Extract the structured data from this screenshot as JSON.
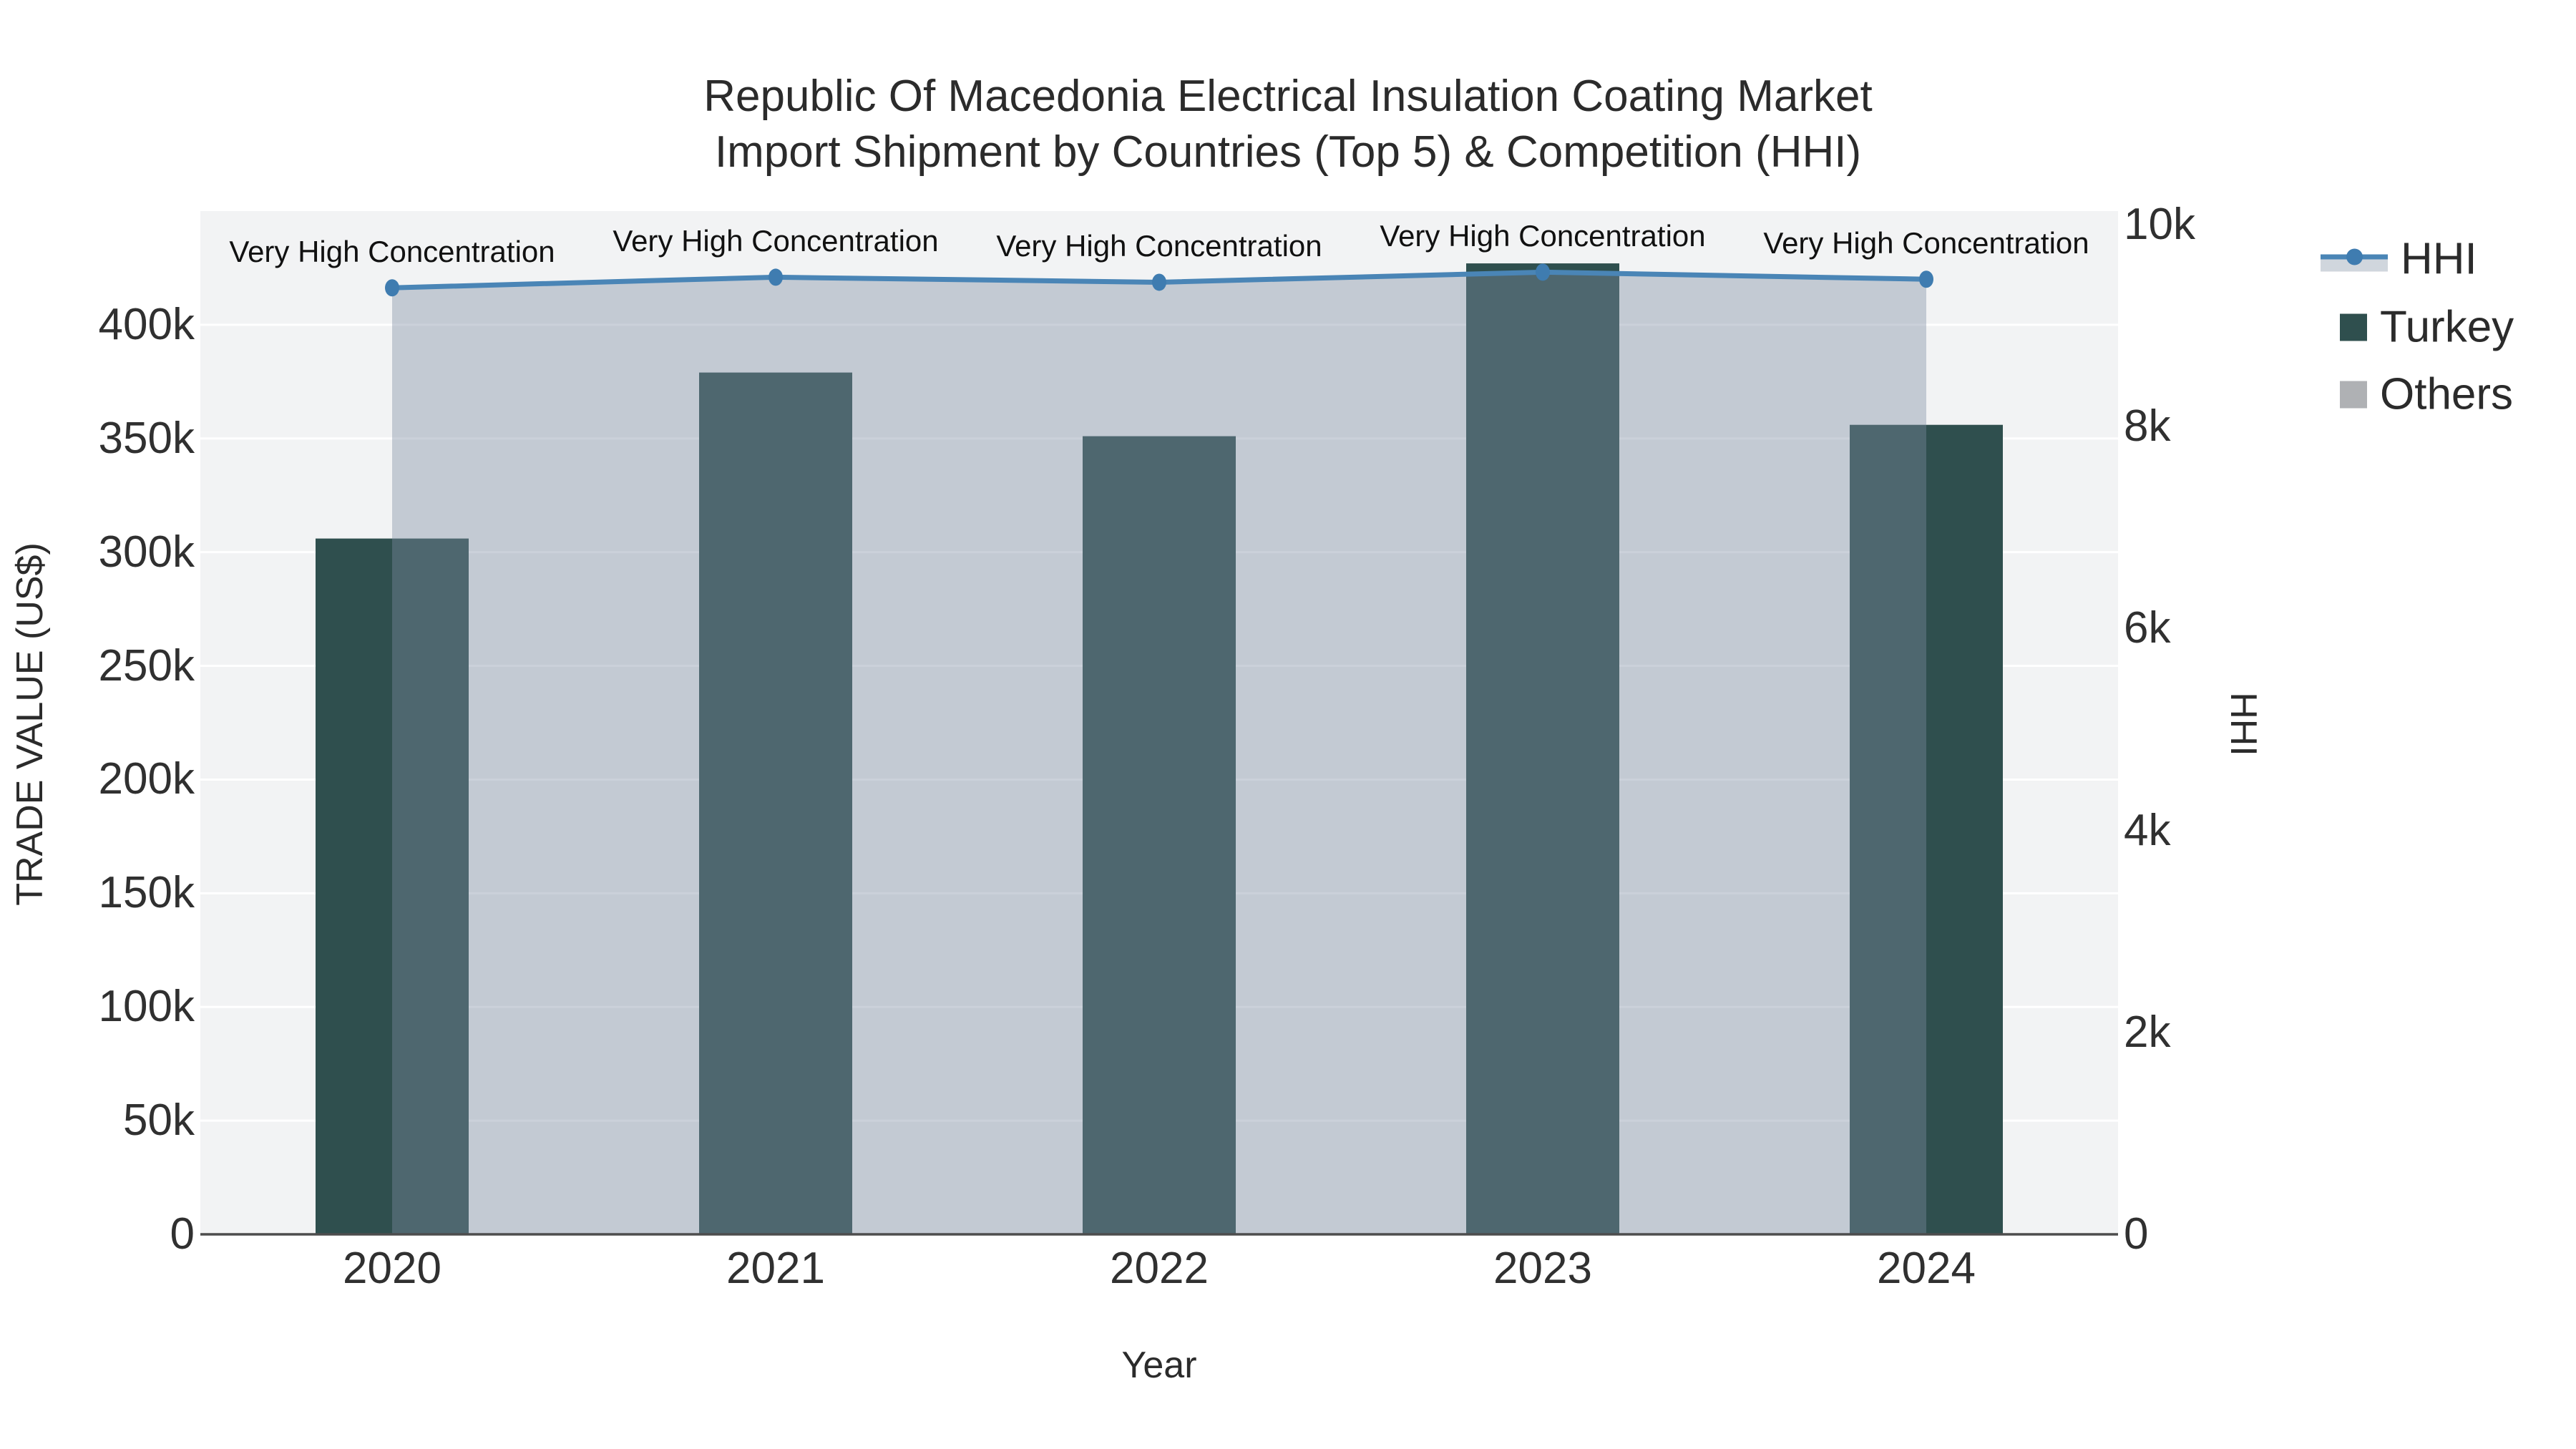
{
  "title": {
    "line1": "Republic Of Macedonia Electrical Insulation Coating Market",
    "line2": "Import Shipment by Countries (Top 5) & Competition (HHI)"
  },
  "axes": {
    "x": {
      "title": "Year",
      "tick_labels": [
        "2020",
        "2021",
        "2022",
        "2023",
        "2024"
      ]
    },
    "y_left": {
      "title": "TRADE VALUE (US$)",
      "tick_labels": [
        "0",
        "50k",
        "100k",
        "150k",
        "200k",
        "250k",
        "300k",
        "350k",
        "400k"
      ],
      "tick_values": [
        0,
        50000,
        100000,
        150000,
        200000,
        250000,
        300000,
        350000,
        400000
      ],
      "range": [
        0,
        450000
      ]
    },
    "y_right": {
      "title": "HHI",
      "tick_labels": [
        "0",
        "2k",
        "4k",
        "6k",
        "8k",
        "10k"
      ],
      "tick_values": [
        0,
        2000,
        4000,
        6000,
        8000,
        10000
      ],
      "range": [
        0,
        10135
      ]
    }
  },
  "legend": {
    "items": [
      {
        "label": "HHI",
        "kind": "line-with-fill"
      },
      {
        "label": "Turkey",
        "kind": "bar"
      },
      {
        "label": "Others",
        "kind": "bar"
      }
    ]
  },
  "chart_data": {
    "type": "bar+line",
    "categories": [
      "2020",
      "2021",
      "2022",
      "2023",
      "2024"
    ],
    "series": [
      {
        "name": "Turkey",
        "type": "bar",
        "yaxis": "left",
        "values": [
          306000,
          379000,
          351000,
          427000,
          356000
        ]
      },
      {
        "name": "Others",
        "type": "bar",
        "yaxis": "left",
        "values": [],
        "visible_in_plot": false
      },
      {
        "name": "HHI",
        "type": "line",
        "yaxis": "right",
        "fill": "to-zero",
        "values": [
          9375,
          9480,
          9430,
          9530,
          9460
        ]
      }
    ],
    "annotations": [
      {
        "text": "Very High Concentration",
        "category": "2020"
      },
      {
        "text": "Very High Concentration",
        "category": "2021"
      },
      {
        "text": "Very High Concentration",
        "category": "2022"
      },
      {
        "text": "Very High Concentration",
        "category": "2023"
      },
      {
        "text": "Very High Concentration",
        "category": "2024"
      }
    ],
    "legend_position": "right",
    "grid": "horizontal-only"
  },
  "colors": {
    "turkey_bar": "#2f4f4e",
    "others_swatch": "#afb1b4",
    "hhi_line": "#4a85b6",
    "hhi_marker": "#3f7cb0",
    "hhi_fill": "rgba(125,140,162,0.40)",
    "legend_fill_swatch": "#d0d6dd",
    "plot_background": "#f2f3f4",
    "gridline": "#ffffff",
    "axis_line": "#4d4d4d",
    "text": "#2b2b2b"
  }
}
